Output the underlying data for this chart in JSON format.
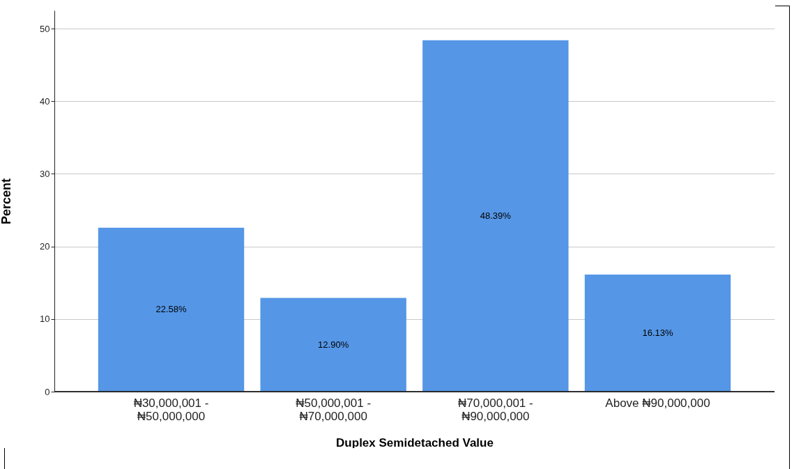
{
  "chart_data": {
    "type": "bar",
    "xlabel": "Duplex Semidetached Value",
    "ylabel": "Percent",
    "categories": [
      "₦30,000,001 - ₦50,000,000",
      "₦50,000,001 - ₦70,000,000",
      "₦70,000,001 - ₦90,000,000",
      "Above ₦90,000,000"
    ],
    "values": [
      22.58,
      12.9,
      48.39,
      16.13
    ],
    "value_labels": [
      "22.58%",
      "12.90%",
      "48.39%",
      "16.13%"
    ],
    "color": "#5596e6",
    "ylim": [
      0,
      52.5
    ],
    "yticks": [
      0,
      10,
      20,
      30,
      40,
      50
    ],
    "grid": "y"
  }
}
